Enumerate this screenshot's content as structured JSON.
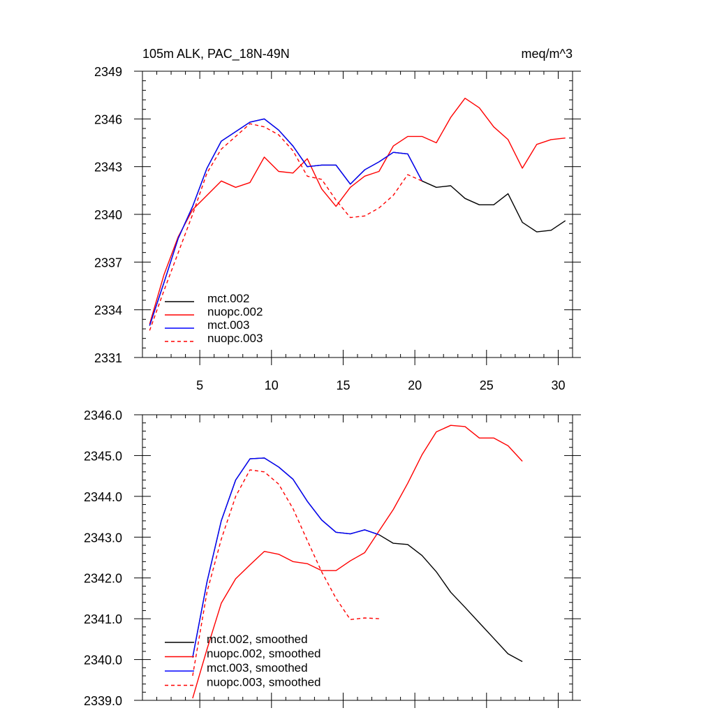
{
  "chart_data": [
    {
      "type": "line",
      "title_left": "105m ALK, PAC_18N-49N",
      "title_right": "meq/m^3",
      "xlabel": "",
      "ylabel": "",
      "xlim": [
        1,
        31
      ],
      "ylim": [
        2331,
        2349
      ],
      "xticks": [
        5,
        10,
        15,
        20,
        25,
        30
      ],
      "xtick_labels": [
        "5",
        "10",
        "15",
        "20",
        "25",
        "30"
      ],
      "yticks": [
        2331,
        2334,
        2337,
        2340,
        2343,
        2346,
        2349
      ],
      "ytick_labels": [
        "2331",
        "2334",
        "2337",
        "2340",
        "2343",
        "2346",
        "2349"
      ],
      "legend": "bottom-left",
      "grid": false,
      "series": [
        {
          "name": "mct.002",
          "color": "#000000",
          "dash": false,
          "x": [
            1.5,
            2.5,
            3.5,
            4.5,
            5.5,
            6.5,
            7.5,
            8.5,
            9.5,
            10.5,
            11.5,
            12.5,
            13.5,
            14.5,
            15.5,
            16.5,
            17.5,
            18.5,
            19.5,
            20.5,
            21.5,
            22.5,
            23.5,
            24.5,
            25.5,
            26.5,
            27.5,
            28.5,
            29.5,
            30.5
          ],
          "values": [
            2333.0,
            2335.7,
            2338.5,
            2340.5,
            2342.9,
            2344.6,
            2345.2,
            2345.8,
            2346.0,
            2345.3,
            2344.3,
            2343.0,
            2343.1,
            2343.1,
            2341.9,
            2342.8,
            2343.3,
            2343.9,
            2343.8,
            2342.1,
            2341.7,
            2341.8,
            2341.0,
            2340.6,
            2340.6,
            2341.3,
            2339.5,
            2338.9,
            2339.0,
            2339.6
          ]
        },
        {
          "name": "nuopc.002",
          "color": "#ff0000",
          "dash": false,
          "x": [
            1.5,
            2.5,
            3.5,
            4.5,
            5.5,
            6.5,
            7.5,
            8.5,
            9.5,
            10.5,
            11.5,
            12.5,
            13.5,
            14.5,
            15.5,
            16.5,
            17.5,
            18.5,
            19.5,
            20.5,
            21.5,
            22.5,
            23.5,
            24.5,
            25.5,
            26.5,
            27.5,
            28.5,
            29.5,
            30.5
          ],
          "values": [
            2333.1,
            2336.2,
            2338.6,
            2340.3,
            2341.2,
            2342.1,
            2341.7,
            2342.0,
            2343.6,
            2342.7,
            2342.6,
            2343.5,
            2341.6,
            2340.5,
            2341.7,
            2342.4,
            2342.7,
            2344.3,
            2344.9,
            2344.9,
            2344.5,
            2346.1,
            2347.3,
            2346.7,
            2345.5,
            2344.7,
            2342.9,
            2344.4,
            2344.7,
            2344.8
          ]
        },
        {
          "name": "mct.003",
          "color": "#0000ff",
          "dash": false,
          "x": [
            1.5,
            2.5,
            3.5,
            4.5,
            5.5,
            6.5,
            7.5,
            8.5,
            9.5,
            10.5,
            11.5,
            12.5,
            13.5,
            14.5,
            15.5,
            16.5,
            17.5,
            18.5,
            19.5,
            20.5
          ],
          "values": [
            2333.0,
            2335.7,
            2338.5,
            2340.5,
            2342.9,
            2344.6,
            2345.2,
            2345.8,
            2346.0,
            2345.3,
            2344.3,
            2343.0,
            2343.1,
            2343.1,
            2341.9,
            2342.8,
            2343.3,
            2343.9,
            2343.8,
            2342.1
          ]
        },
        {
          "name": "nuopc.003",
          "color": "#ff0000",
          "dash": true,
          "x": [
            1.5,
            2.5,
            3.5,
            4.5,
            5.5,
            6.5,
            7.5,
            8.5,
            9.5,
            10.5,
            11.5,
            12.5,
            13.5,
            14.5,
            15.5,
            16.5,
            17.5,
            18.5,
            19.5,
            20.5
          ],
          "values": [
            2332.7,
            2335.2,
            2337.6,
            2340.0,
            2342.6,
            2344.1,
            2344.9,
            2345.7,
            2345.5,
            2345.0,
            2344.0,
            2342.4,
            2342.2,
            2340.9,
            2339.8,
            2339.9,
            2340.4,
            2341.2,
            2342.5,
            2342.1
          ]
        }
      ]
    },
    {
      "type": "line",
      "xlim": [
        1,
        31
      ],
      "ylim": [
        2339.0,
        2346.0
      ],
      "xticks": [
        5,
        10,
        15,
        20,
        25,
        30
      ],
      "yticks": [
        2339.0,
        2340.0,
        2341.0,
        2342.0,
        2343.0,
        2344.0,
        2345.0,
        2346.0
      ],
      "ytick_labels": [
        "2339.0",
        "2340.0",
        "2341.0",
        "2342.0",
        "2343.0",
        "2344.0",
        "2345.0",
        "2346.0"
      ],
      "legend": "bottom-left",
      "grid": false,
      "series": [
        {
          "name": "mct.002, smoothed",
          "color": "#000000",
          "dash": false,
          "x": [
            4.5,
            5.5,
            6.5,
            7.5,
            8.5,
            9.5,
            10.5,
            11.5,
            12.5,
            13.5,
            14.5,
            15.5,
            16.5,
            17.5,
            18.5,
            19.5,
            20.5,
            21.5,
            22.5,
            23.5,
            24.5,
            25.5,
            26.5,
            27.5
          ],
          "values": [
            2340.05,
            2341.9,
            2343.4,
            2344.4,
            2344.92,
            2344.94,
            2344.72,
            2344.42,
            2343.88,
            2343.42,
            2343.12,
            2343.08,
            2343.18,
            2343.06,
            2342.85,
            2342.82,
            2342.55,
            2342.15,
            2341.65,
            2341.28,
            2340.9,
            2340.52,
            2340.14,
            2339.95
          ]
        },
        {
          "name": "nuopc.002, smoothed",
          "color": "#ff0000",
          "dash": false,
          "x": [
            4.5,
            5.5,
            6.5,
            7.5,
            8.5,
            9.5,
            10.5,
            11.5,
            12.5,
            13.5,
            14.5,
            15.5,
            16.5,
            17.5,
            18.5,
            19.5,
            20.5,
            21.5,
            22.5,
            23.5,
            24.5,
            25.5,
            26.5,
            27.5
          ],
          "values": [
            2339.05,
            2340.25,
            2341.38,
            2341.98,
            2342.32,
            2342.65,
            2342.58,
            2342.4,
            2342.35,
            2342.18,
            2342.18,
            2342.42,
            2342.62,
            2343.15,
            2343.68,
            2344.32,
            2345.02,
            2345.58,
            2345.74,
            2345.71,
            2345.43,
            2345.43,
            2345.24,
            2344.86
          ]
        },
        {
          "name": "mct.003, smoothed",
          "color": "#0000ff",
          "dash": false,
          "x": [
            4.5,
            5.5,
            6.5,
            7.5,
            8.5,
            9.5,
            10.5,
            11.5,
            12.5,
            13.5,
            14.5,
            15.5,
            16.5,
            17.5
          ],
          "values": [
            2340.05,
            2341.9,
            2343.4,
            2344.4,
            2344.92,
            2344.94,
            2344.72,
            2344.42,
            2343.88,
            2343.42,
            2343.12,
            2343.08,
            2343.18,
            2343.06
          ]
        },
        {
          "name": "nuopc.003, smoothed",
          "color": "#ff0000",
          "dash": true,
          "x": [
            4.5,
            5.5,
            6.5,
            7.5,
            8.5,
            9.5,
            10.5,
            11.5,
            12.5,
            13.5,
            14.5,
            15.5,
            16.5,
            17.5
          ],
          "values": [
            2339.6,
            2341.65,
            2342.95,
            2344.0,
            2344.65,
            2344.6,
            2344.3,
            2343.7,
            2342.92,
            2342.15,
            2341.5,
            2340.98,
            2341.02,
            2341.0
          ]
        }
      ]
    }
  ]
}
